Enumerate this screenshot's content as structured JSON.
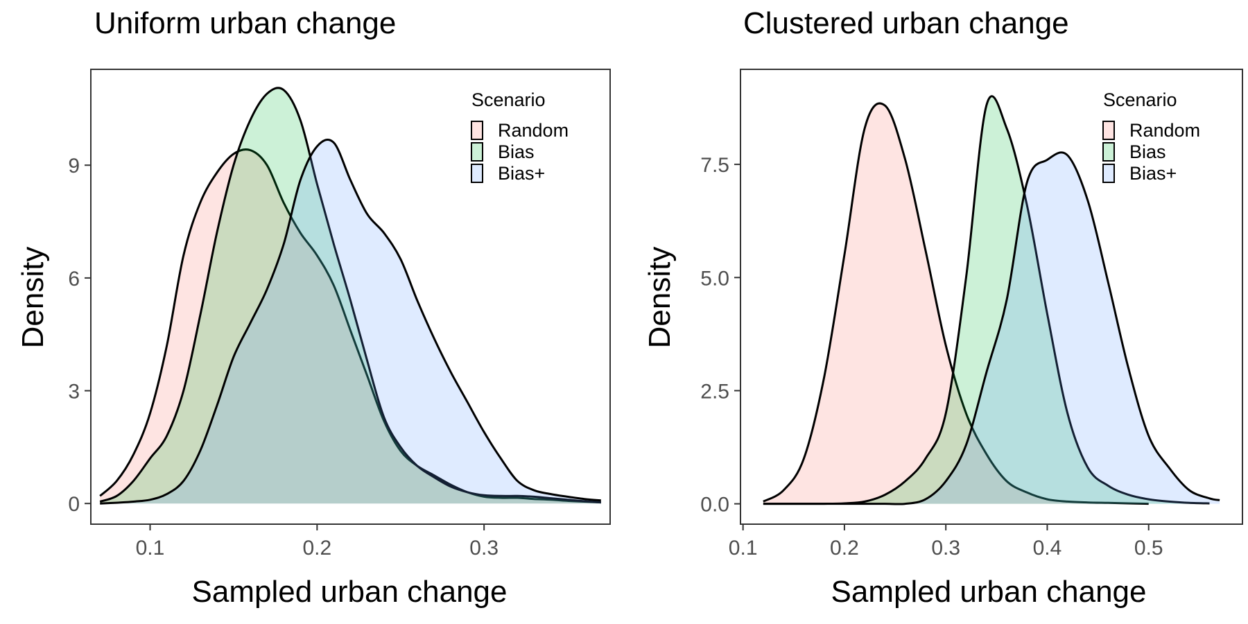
{
  "colors": {
    "Random": "#F8766D",
    "Bias": "#00BA38",
    "Bias+": "#619CFF"
  },
  "chart_data": [
    {
      "type": "area",
      "title": "Uniform urban change",
      "xlabel": "Sampled urban change",
      "ylabel": "Density",
      "xlim": [
        0.0645,
        0.3755
      ],
      "ylim": [
        -0.55,
        11.55
      ],
      "xticks": [
        0.1,
        0.2,
        0.3
      ],
      "xtick_labels": [
        "0.1",
        "0.2",
        "0.3"
      ],
      "yticks": [
        0,
        3,
        6,
        9
      ],
      "ytick_labels": [
        "0",
        "3",
        "6",
        "9"
      ],
      "grid": false,
      "legend": {
        "title": "Scenario",
        "position": "top-right",
        "entries": [
          "Random",
          "Bias",
          "Bias+"
        ]
      },
      "series": [
        {
          "name": "Random",
          "x": [
            0.07,
            0.08,
            0.09,
            0.1,
            0.11,
            0.12,
            0.13,
            0.14,
            0.15,
            0.16,
            0.17,
            0.18,
            0.19,
            0.2,
            0.21,
            0.22,
            0.23,
            0.24,
            0.25,
            0.26,
            0.27,
            0.28,
            0.29,
            0.3,
            0.31,
            0.32,
            0.33,
            0.34,
            0.35,
            0.36,
            0.37
          ],
          "y": [
            0.2,
            0.6,
            1.3,
            2.4,
            4.2,
            6.6,
            8.0,
            8.8,
            9.3,
            9.4,
            9.0,
            8.0,
            7.2,
            6.6,
            5.8,
            4.6,
            3.4,
            2.2,
            1.4,
            1.0,
            0.75,
            0.5,
            0.3,
            0.18,
            0.15,
            0.15,
            0.12,
            0.1,
            0.07,
            0.05,
            0.03
          ]
        },
        {
          "name": "Bias",
          "x": [
            0.07,
            0.08,
            0.09,
            0.1,
            0.11,
            0.12,
            0.13,
            0.14,
            0.15,
            0.16,
            0.17,
            0.18,
            0.19,
            0.2,
            0.21,
            0.22,
            0.23,
            0.24,
            0.25,
            0.26,
            0.27,
            0.28,
            0.29,
            0.3,
            0.31,
            0.32,
            0.33,
            0.34,
            0.35,
            0.36,
            0.37
          ],
          "y": [
            0.05,
            0.2,
            0.6,
            1.2,
            1.8,
            3.0,
            5.0,
            7.2,
            9.0,
            10.2,
            10.9,
            11.0,
            10.2,
            8.5,
            6.9,
            5.4,
            3.8,
            2.3,
            1.5,
            1.0,
            0.7,
            0.45,
            0.3,
            0.22,
            0.2,
            0.2,
            0.18,
            0.14,
            0.1,
            0.06,
            0.03
          ]
        },
        {
          "name": "Bias+",
          "x": [
            0.07,
            0.08,
            0.09,
            0.1,
            0.11,
            0.12,
            0.13,
            0.14,
            0.15,
            0.16,
            0.17,
            0.18,
            0.19,
            0.2,
            0.21,
            0.22,
            0.23,
            0.24,
            0.25,
            0.26,
            0.27,
            0.28,
            0.29,
            0.3,
            0.31,
            0.32,
            0.33,
            0.34,
            0.35,
            0.36,
            0.37
          ],
          "y": [
            0.0,
            0.02,
            0.05,
            0.1,
            0.25,
            0.6,
            1.4,
            2.6,
            3.9,
            4.8,
            5.7,
            6.9,
            8.6,
            9.5,
            9.6,
            8.6,
            7.7,
            7.2,
            6.5,
            5.4,
            4.4,
            3.5,
            2.7,
            1.9,
            1.2,
            0.6,
            0.35,
            0.25,
            0.18,
            0.12,
            0.08
          ]
        }
      ]
    },
    {
      "type": "area",
      "title": "Clustered urban change",
      "xlabel": "Sampled urban change",
      "ylabel": "Density",
      "xlim": [
        0.0975,
        0.5925
      ],
      "ylim": [
        -0.45,
        9.6
      ],
      "xticks": [
        0.1,
        0.2,
        0.3,
        0.4,
        0.5
      ],
      "xtick_labels": [
        "0.1",
        "0.2",
        "0.3",
        "0.4",
        "0.5"
      ],
      "yticks": [
        0.0,
        2.5,
        5.0,
        7.5
      ],
      "ytick_labels": [
        "0.0",
        "2.5",
        "5.0",
        "7.5"
      ],
      "grid": false,
      "legend": {
        "title": "Scenario",
        "position": "top-right",
        "entries": [
          "Random",
          "Bias",
          "Bias+"
        ]
      },
      "series": [
        {
          "name": "Random",
          "x": [
            0.12,
            0.14,
            0.16,
            0.18,
            0.2,
            0.22,
            0.24,
            0.26,
            0.28,
            0.3,
            0.32,
            0.34,
            0.36,
            0.38,
            0.4,
            0.42,
            0.44,
            0.46,
            0.48,
            0.5
          ],
          "y": [
            0.05,
            0.3,
            1.0,
            2.8,
            5.5,
            8.3,
            8.8,
            7.6,
            5.6,
            3.5,
            2.0,
            1.1,
            0.5,
            0.25,
            0.1,
            0.05,
            0.03,
            0.02,
            0.01,
            0.0
          ]
        },
        {
          "name": "Bias",
          "x": [
            0.12,
            0.14,
            0.16,
            0.18,
            0.2,
            0.22,
            0.24,
            0.26,
            0.28,
            0.3,
            0.32,
            0.34,
            0.36,
            0.38,
            0.4,
            0.42,
            0.44,
            0.46,
            0.48,
            0.5,
            0.52,
            0.54,
            0.56
          ],
          "y": [
            0.0,
            0.0,
            0.0,
            0.0,
            0.01,
            0.05,
            0.2,
            0.5,
            1.0,
            2.0,
            5.0,
            8.8,
            8.3,
            6.6,
            4.2,
            2.0,
            0.8,
            0.4,
            0.2,
            0.1,
            0.05,
            0.02,
            0.01
          ]
        },
        {
          "name": "Bias+",
          "x": [
            0.12,
            0.14,
            0.16,
            0.18,
            0.2,
            0.22,
            0.24,
            0.26,
            0.28,
            0.3,
            0.32,
            0.34,
            0.36,
            0.38,
            0.4,
            0.42,
            0.44,
            0.46,
            0.48,
            0.5,
            0.52,
            0.54,
            0.56,
            0.57
          ],
          "y": [
            0.0,
            0.0,
            0.0,
            0.0,
            0.0,
            0.0,
            0.0,
            0.0,
            0.1,
            0.5,
            1.3,
            2.9,
            4.5,
            7.1,
            7.6,
            7.7,
            6.7,
            4.9,
            3.0,
            1.5,
            0.8,
            0.3,
            0.12,
            0.08
          ]
        }
      ]
    }
  ]
}
